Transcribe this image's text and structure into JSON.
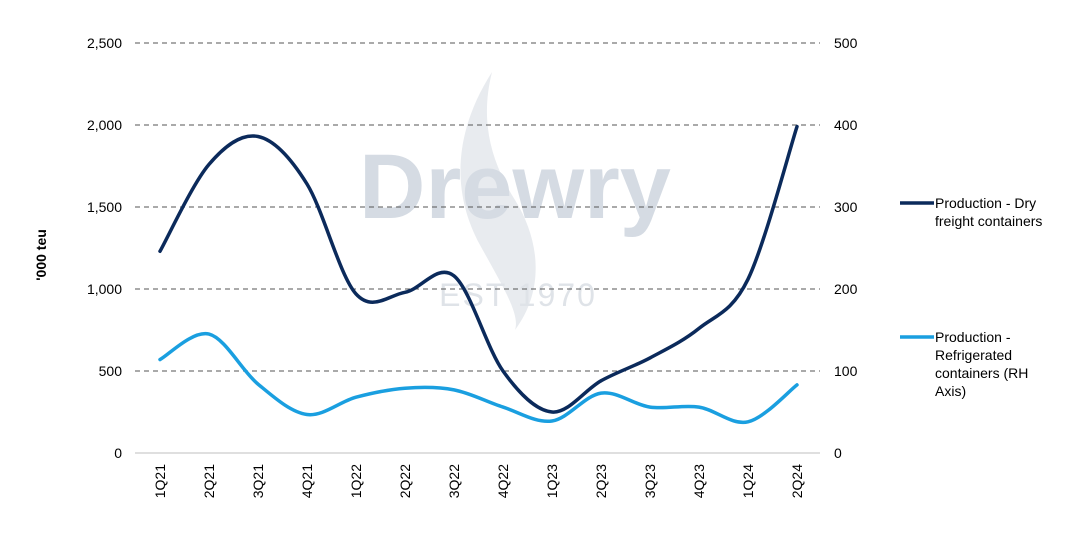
{
  "chart_data": {
    "type": "line",
    "categories": [
      "1Q21",
      "2Q21",
      "3Q21",
      "4Q21",
      "1Q22",
      "2Q22",
      "3Q22",
      "4Q22",
      "1Q23",
      "2Q23",
      "3Q23",
      "4Q23",
      "1Q24",
      "2Q24"
    ],
    "series": [
      {
        "name": "Production - Dry freight containers",
        "axis": "left",
        "color": "#0b2a5b",
        "values": [
          1230,
          1760,
          1930,
          1640,
          970,
          980,
          1080,
          500,
          250,
          440,
          580,
          760,
          1060,
          1990
        ]
      },
      {
        "name": "Production - Refrigerated containers (RH Axis)",
        "axis": "right",
        "color": "#1a9fe0",
        "values": [
          114,
          145,
          84,
          47,
          68,
          79,
          77,
          56,
          39,
          73,
          56,
          56,
          38,
          83
        ]
      }
    ],
    "ylabel": "'000  teu",
    "ylim": [
      0,
      2500
    ],
    "y_ticks": [
      "0",
      "500",
      "1,000",
      "1,500",
      "2,000",
      "2,500"
    ],
    "y2lim": [
      0,
      500
    ],
    "y2_ticks": [
      "0",
      "100",
      "200",
      "300",
      "400",
      "500"
    ],
    "grid": "horizontal-dashed",
    "legend_position": "right",
    "smooth": true
  },
  "watermark": {
    "brand": "Drewry",
    "tagline": "EST 1970"
  }
}
